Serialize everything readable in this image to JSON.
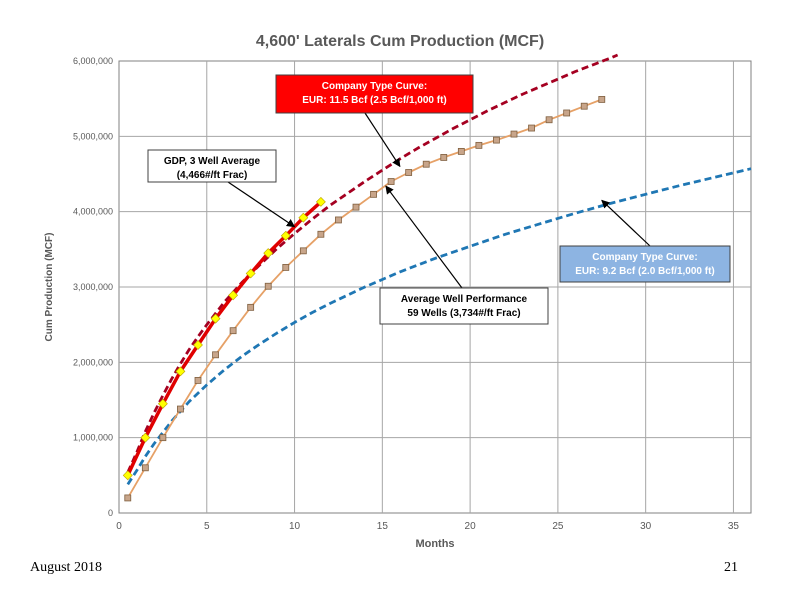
{
  "chart_data": {
    "type": "line",
    "title": "4,600' Laterals Cum Production (MCF)",
    "xlabel": "Months",
    "ylabel": "Cum Production (MCF)",
    "xlim": [
      0,
      36
    ],
    "ylim": [
      0,
      6000000
    ],
    "x_ticks": [
      0,
      5,
      10,
      15,
      20,
      25,
      30,
      35
    ],
    "y_ticks": [
      0,
      1000000,
      2000000,
      3000000,
      4000000,
      5000000,
      6000000
    ],
    "y_tick_labels": [
      "0",
      "1,000,000",
      "2,000,000",
      "3,000,000",
      "4,000,000",
      "5,000,000",
      "6,000,000"
    ],
    "grid": true,
    "series": [
      {
        "color": "#a50021",
        "style": "dashed",
        "x": [
          0.5,
          1,
          1.5,
          2,
          2.5,
          3,
          3.5,
          4,
          4.5,
          5,
          5.5,
          6,
          7,
          8,
          9,
          10,
          11,
          12,
          13,
          14,
          15,
          16,
          17,
          18,
          19,
          20,
          21,
          22,
          23,
          24,
          25,
          26,
          27,
          28,
          28.4
        ],
        "values": [
          540000,
          800000,
          1080000,
          1330000,
          1560000,
          1780000,
          1980000,
          2170000,
          2340000,
          2500000,
          2650000,
          2800000,
          3060000,
          3290000,
          3510000,
          3710000,
          3900000,
          4080000,
          4240000,
          4400000,
          4550000,
          4700000,
          4840000,
          4970000,
          5100000,
          5220000,
          5340000,
          5450000,
          5560000,
          5660000,
          5760000,
          5860000,
          5950000,
          6040000,
          6080000
        ]
      },
      {
        "color": "#1f77b4",
        "style": "dashed",
        "x": [
          0.5,
          1,
          1.5,
          2,
          3,
          4,
          5,
          6,
          7,
          8,
          9,
          10,
          11,
          12,
          13,
          14,
          15,
          16,
          17,
          18,
          19,
          20,
          22,
          24,
          26,
          28,
          30,
          32,
          34,
          36
        ],
        "values": [
          380000,
          560000,
          750000,
          920000,
          1220000,
          1480000,
          1700000,
          1900000,
          2080000,
          2240000,
          2390000,
          2530000,
          2660000,
          2780000,
          2890000,
          3000000,
          3100000,
          3200000,
          3290000,
          3380000,
          3460000,
          3540000,
          3700000,
          3840000,
          3980000,
          4110000,
          4230000,
          4350000,
          4460000,
          4570000
        ]
      },
      {
        "color": "#e6a167",
        "marker": "square",
        "x": [
          0.5,
          1.5,
          2.5,
          3.5,
          4.5,
          5.5,
          6.5,
          7.5,
          8.5,
          9.5,
          10.5,
          11.5,
          12.5,
          13.5,
          14.5,
          15.5,
          16.5,
          17.5,
          18.5,
          19.5,
          20.5,
          21.5,
          22.5,
          23.5,
          24.5,
          25.5,
          26.5,
          27.5
        ],
        "values": [
          200000,
          600000,
          1000000,
          1380000,
          1760000,
          2100000,
          2420000,
          2730000,
          3010000,
          3260000,
          3480000,
          3700000,
          3890000,
          4060000,
          4230000,
          4400000,
          4520000,
          4630000,
          4720000,
          4800000,
          4880000,
          4950000,
          5030000,
          5110000,
          5220000,
          5310000,
          5400000,
          5490000
        ]
      },
      {
        "color": "#e00000",
        "marker": "diamond",
        "marker_color": "#ffff00",
        "x": [
          0.5,
          1.5,
          2.5,
          3.5,
          4.5,
          5.5,
          6.5,
          7.5,
          8.5,
          9.5,
          10.5,
          11.5
        ],
        "values": [
          500000,
          1000000,
          1450000,
          1880000,
          2230000,
          2580000,
          2890000,
          3180000,
          3450000,
          3680000,
          3920000,
          4130000
        ]
      }
    ],
    "annotations": [
      {
        "id": "company-red",
        "lines": [
          "Company Type Curve:",
          "EUR: 11.5 Bcf (2.5 Bcf/1,000 ft)"
        ],
        "bg": "#ff0000",
        "color": "#ffffff",
        "arrow_to": [
          16,
          4600000
        ]
      },
      {
        "id": "gdp",
        "lines": [
          "GDP, 3 Well Average",
          "(4,466#/ft Frac)"
        ],
        "bg": "#ffffff",
        "color": "#000000",
        "arrow_to": [
          10,
          3800000
        ]
      },
      {
        "id": "company-blue",
        "lines": [
          "Company Type Curve:",
          "EUR: 9.2 Bcf (2.0 Bcf/1,000 ft)"
        ],
        "bg": "#8db4e2",
        "color": "#ffffff",
        "arrow_to": [
          27.5,
          4150000
        ]
      },
      {
        "id": "avg-well",
        "lines": [
          "Average Well Performance",
          "59 Wells (3,734#/ft Frac)"
        ],
        "bg": "#ffffff",
        "color": "#000000",
        "arrow_to": [
          15.2,
          4340000
        ]
      }
    ]
  },
  "footer": {
    "date": "August 2018",
    "page_number": "21"
  }
}
